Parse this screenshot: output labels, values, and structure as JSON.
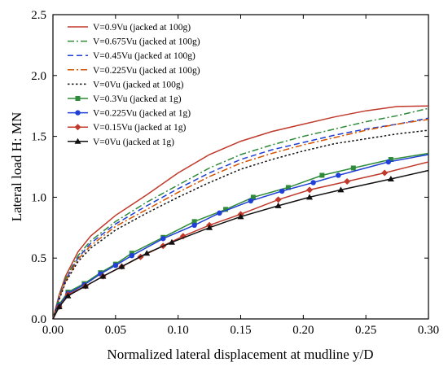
{
  "chart_data": {
    "type": "line",
    "xlabel": "Normalized lateral displacement at mudline y/D",
    "ylabel": "Lateral load H: MN",
    "xlim": [
      0,
      0.3
    ],
    "ylim": [
      0,
      2.5
    ],
    "xticks": [
      "0.00",
      "0.05",
      "0.10",
      "0.15",
      "0.20",
      "0.25",
      "0.30"
    ],
    "yticks": [
      "0.0",
      "0.5",
      "1.0",
      "1.5",
      "2.0",
      "2.5"
    ],
    "legend_position": "top-left",
    "grid": false,
    "series": [
      {
        "name": "V=0.9Vu (jacked at 100g)",
        "color": "#c0392b",
        "dash": "solid",
        "marker": "none",
        "x": [
          0,
          0.005,
          0.01,
          0.02,
          0.03,
          0.05,
          0.075,
          0.1,
          0.125,
          0.15,
          0.175,
          0.2,
          0.225,
          0.25,
          0.275,
          0.3
        ],
        "y": [
          0,
          0.2,
          0.35,
          0.55,
          0.68,
          0.85,
          1.02,
          1.2,
          1.35,
          1.46,
          1.54,
          1.6,
          1.66,
          1.71,
          1.745,
          1.75
        ]
      },
      {
        "name": "V=0.675Vu (jacked at 100g)",
        "color": "#2e8b3a",
        "dash": "dashdot",
        "marker": "none",
        "x": [
          0,
          0.005,
          0.01,
          0.02,
          0.03,
          0.05,
          0.075,
          0.1,
          0.125,
          0.15,
          0.175,
          0.2,
          0.225,
          0.25,
          0.275,
          0.3
        ],
        "y": [
          0,
          0.19,
          0.33,
          0.52,
          0.64,
          0.8,
          0.96,
          1.1,
          1.24,
          1.35,
          1.43,
          1.5,
          1.56,
          1.62,
          1.67,
          1.73
        ]
      },
      {
        "name": "V=0.45Vu (jacked at 100g)",
        "color": "#1f3fd6",
        "dash": "dash",
        "marker": "none",
        "x": [
          0,
          0.005,
          0.01,
          0.02,
          0.03,
          0.05,
          0.075,
          0.1,
          0.125,
          0.15,
          0.175,
          0.2,
          0.225,
          0.25,
          0.275,
          0.3
        ],
        "y": [
          0,
          0.18,
          0.32,
          0.5,
          0.62,
          0.78,
          0.93,
          1.07,
          1.2,
          1.31,
          1.39,
          1.45,
          1.51,
          1.56,
          1.6,
          1.65
        ]
      },
      {
        "name": "V=0.225Vu (jacked at 100g)",
        "color": "#d35400",
        "dash": "dashdot",
        "marker": "none",
        "x": [
          0,
          0.005,
          0.01,
          0.02,
          0.03,
          0.05,
          0.075,
          0.1,
          0.125,
          0.15,
          0.175,
          0.2,
          0.225,
          0.25,
          0.275,
          0.3
        ],
        "y": [
          0,
          0.17,
          0.31,
          0.49,
          0.6,
          0.76,
          0.9,
          1.04,
          1.17,
          1.28,
          1.36,
          1.43,
          1.49,
          1.55,
          1.6,
          1.64
        ]
      },
      {
        "name": "V=0Vu (jacked at 100g)",
        "color": "#111111",
        "dash": "dot",
        "marker": "none",
        "x": [
          0,
          0.005,
          0.01,
          0.02,
          0.03,
          0.05,
          0.075,
          0.1,
          0.125,
          0.15,
          0.175,
          0.2,
          0.225,
          0.25,
          0.275,
          0.3
        ],
        "y": [
          0,
          0.16,
          0.3,
          0.47,
          0.58,
          0.73,
          0.87,
          1.0,
          1.12,
          1.23,
          1.31,
          1.38,
          1.44,
          1.48,
          1.52,
          1.55
        ]
      },
      {
        "name": "V=0.3Vu (jacked at 1g)",
        "color": "#2e8b3a",
        "dash": "solid",
        "marker": "square",
        "x": [
          0,
          0.005,
          0.012,
          0.025,
          0.038,
          0.05,
          0.063,
          0.088,
          0.113,
          0.138,
          0.16,
          0.188,
          0.215,
          0.24,
          0.27,
          0.3
        ],
        "y": [
          0,
          0.12,
          0.22,
          0.29,
          0.38,
          0.45,
          0.54,
          0.67,
          0.8,
          0.9,
          1.0,
          1.08,
          1.18,
          1.24,
          1.31,
          1.36
        ]
      },
      {
        "name": "V=0.225Vu (jacked at 1g)",
        "color": "#1f3fd6",
        "dash": "solid",
        "marker": "circle",
        "x": [
          0,
          0.005,
          0.012,
          0.025,
          0.038,
          0.05,
          0.063,
          0.088,
          0.113,
          0.133,
          0.158,
          0.183,
          0.208,
          0.228,
          0.268,
          0.3
        ],
        "y": [
          0,
          0.11,
          0.21,
          0.28,
          0.37,
          0.44,
          0.52,
          0.66,
          0.77,
          0.87,
          0.97,
          1.05,
          1.12,
          1.18,
          1.29,
          1.35
        ]
      },
      {
        "name": "V=0.15Vu (jacked at 1g)",
        "color": "#c0392b",
        "dash": "solid",
        "marker": "diamond",
        "x": [
          0,
          0.005,
          0.012,
          0.026,
          0.04,
          0.055,
          0.07,
          0.088,
          0.104,
          0.125,
          0.15,
          0.18,
          0.205,
          0.235,
          0.265,
          0.3
        ],
        "y": [
          0,
          0.1,
          0.2,
          0.27,
          0.35,
          0.43,
          0.51,
          0.6,
          0.68,
          0.77,
          0.86,
          0.98,
          1.06,
          1.13,
          1.2,
          1.29
        ]
      },
      {
        "name": "V=0Vu (jacked at  1g)",
        "color": "#111111",
        "dash": "solid",
        "marker": "triangle",
        "x": [
          0,
          0.005,
          0.012,
          0.026,
          0.04,
          0.055,
          0.075,
          0.095,
          0.125,
          0.15,
          0.18,
          0.205,
          0.23,
          0.27,
          0.3
        ],
        "y": [
          0,
          0.1,
          0.19,
          0.27,
          0.35,
          0.43,
          0.54,
          0.63,
          0.75,
          0.84,
          0.93,
          1.0,
          1.06,
          1.15,
          1.22
        ]
      }
    ]
  }
}
